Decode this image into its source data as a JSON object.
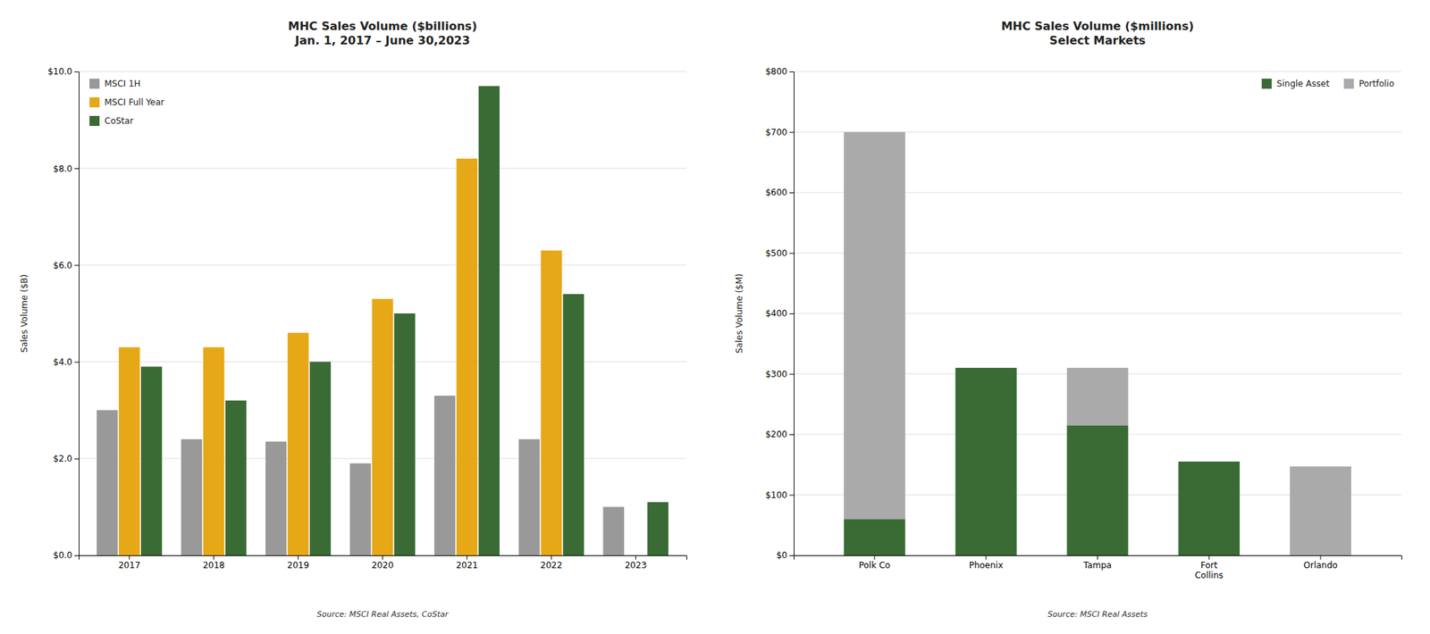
{
  "chart_data": [
    {
      "type": "bar",
      "title": "MHC Sales Volume ($billions)\nJan. 1, 2017 – June 30,2023",
      "y_label": "Sales Volume ($B)",
      "categories": [
        "2017",
        "2018",
        "2019",
        "2020",
        "2021",
        "2022",
        "2023"
      ],
      "series": [
        {
          "name": "MSCI 1H",
          "color": "#999999",
          "values": [
            3.0,
            2.4,
            2.35,
            1.9,
            3.3,
            2.4,
            1.0
          ]
        },
        {
          "name": "MSCI Full Year",
          "color": "#E6A817",
          "values": [
            4.3,
            4.3,
            4.6,
            5.3,
            8.2,
            6.3,
            null
          ]
        },
        {
          "name": "CoStar",
          "color": "#3A6B35",
          "values": [
            3.9,
            3.2,
            4.0,
            5.0,
            9.7,
            5.4,
            1.1
          ]
        }
      ],
      "ylim": [
        0,
        10.0
      ],
      "yticks": [
        {
          "value": 0.0,
          "label": "$0.0"
        },
        {
          "value": 2.0,
          "label": "$2.0"
        },
        {
          "value": 4.0,
          "label": "$4.0"
        },
        {
          "value": 6.0,
          "label": "$6.0"
        },
        {
          "value": 8.0,
          "label": "$8.0"
        },
        {
          "value": 10.0,
          "label": "$10.0"
        }
      ],
      "grid": true,
      "legend": "upper left",
      "annotations": [
        "Source: MSCI Real Assets, CoStar"
      ]
    },
    {
      "type": "bar",
      "title": "MHC Sales Volume ($millions)\nSelect Markets",
      "y_label": "Sales Volume ($M)",
      "categories": [
        "Polk Co",
        "Phoenix",
        "Tampa",
        "Fort\nCollins",
        "Orlando"
      ],
      "series": [
        {
          "name": "Single Asset",
          "color": "#3A6B35",
          "values": [
            60,
            310,
            215,
            155,
            0
          ]
        },
        {
          "name": "Portfolio",
          "color": "#AAAAAA",
          "values": [
            640,
            0,
            95,
            0,
            147
          ]
        }
      ],
      "stacked": true,
      "ylim": [
        0,
        800
      ],
      "yticks": [
        {
          "value": 0,
          "label": "$0"
        },
        {
          "value": 100,
          "label": "$100"
        },
        {
          "value": 200,
          "label": "$200"
        },
        {
          "value": 300,
          "label": "$300"
        },
        {
          "value": 400,
          "label": "$400"
        },
        {
          "value": 500,
          "label": "$500"
        },
        {
          "value": 600,
          "label": "$600"
        },
        {
          "value": 700,
          "label": "$700"
        },
        {
          "value": 800,
          "label": "$800"
        }
      ],
      "grid": true,
      "legend": "upper right",
      "annotations": [
        "Source: MSCI Real Assets"
      ]
    }
  ]
}
